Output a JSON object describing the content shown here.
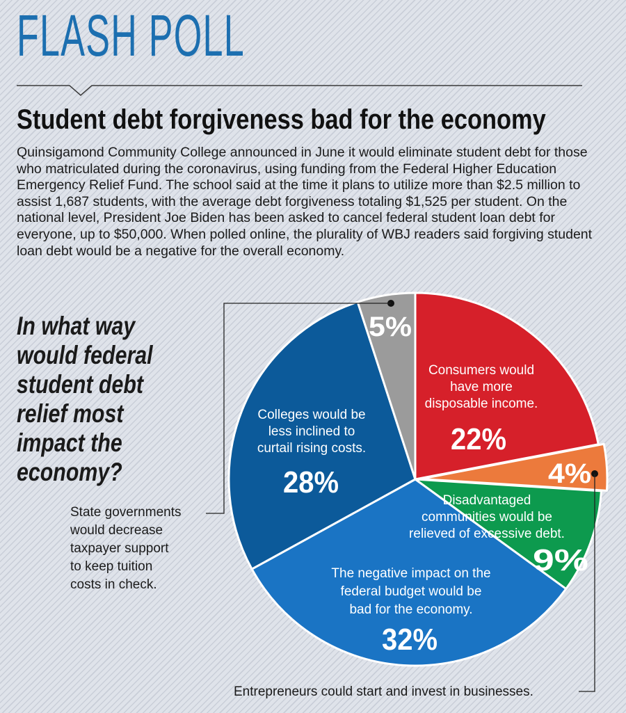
{
  "header": {
    "brand": "FLASH POLL",
    "headline": "Student debt forgiveness bad for the economy",
    "intro": "Quinsigamond Community College announced in June it would eliminate student debt for those who matriculated during the coronavirus, using funding from the Federal Higher Education Emergency Relief Fund. The school said at the time it plans to utilize more than $2.5 million to assist 1,687 students, with the average debt forgiveness totaling $1,525 per student. On the national level, President Joe Biden has been asked to cancel federal student loan debt for everyone, up to $50,000. When polled online, the plurality of WBJ readers said forgiving student loan debt would be a negative for the overall economy."
  },
  "chart_data": {
    "type": "pie",
    "title": "In what way would federal student debt relief most impact the economy?",
    "slices": [
      {
        "label": "Consumers would have more disposable income.",
        "value": 22,
        "display": "22%",
        "color": "#d6202a"
      },
      {
        "label": "Entrepreneurs could start and invest in businesses.",
        "value": 4,
        "display": "4%",
        "color": "#ec7a3c"
      },
      {
        "label": "Disadvantaged communities would be relieved of excessive debt.",
        "value": 9,
        "display": "9%",
        "color": "#0d9a4e"
      },
      {
        "label": "The negative impact on the federal budget would be bad for the economy.",
        "value": 32,
        "display": "32%",
        "color": "#1a74c4"
      },
      {
        "label": "Colleges would be less inclined to curtail rising costs.",
        "value": 28,
        "display": "28%",
        "color": "#0c5a9a"
      },
      {
        "label": "State governments would decrease taxpayer support to keep tuition costs in check.",
        "value": 5,
        "display": "5%",
        "color": "#9b9b9b"
      }
    ],
    "inside_labels": [
      {
        "slice": 0,
        "lines": [
          "Consumers would",
          "have more",
          "disposable income."
        ]
      },
      {
        "slice": 2,
        "lines": [
          "Disadvantaged",
          "communities would be",
          "relieved of excessive debt."
        ]
      },
      {
        "slice": 3,
        "lines": [
          "The negative impact on the",
          "federal budget would be",
          "bad for the economy."
        ]
      },
      {
        "slice": 4,
        "lines": [
          "Colleges would be",
          "less inclined to",
          "curtail rising costs."
        ]
      }
    ],
    "callouts": [
      {
        "slice": 5,
        "lines": [
          "State governments",
          "would decrease",
          "taxpayer support",
          "to keep tuition",
          "costs in check."
        ]
      },
      {
        "slice": 1,
        "lines": [
          "Entrepreneurs could start and invest in businesses."
        ]
      }
    ]
  }
}
